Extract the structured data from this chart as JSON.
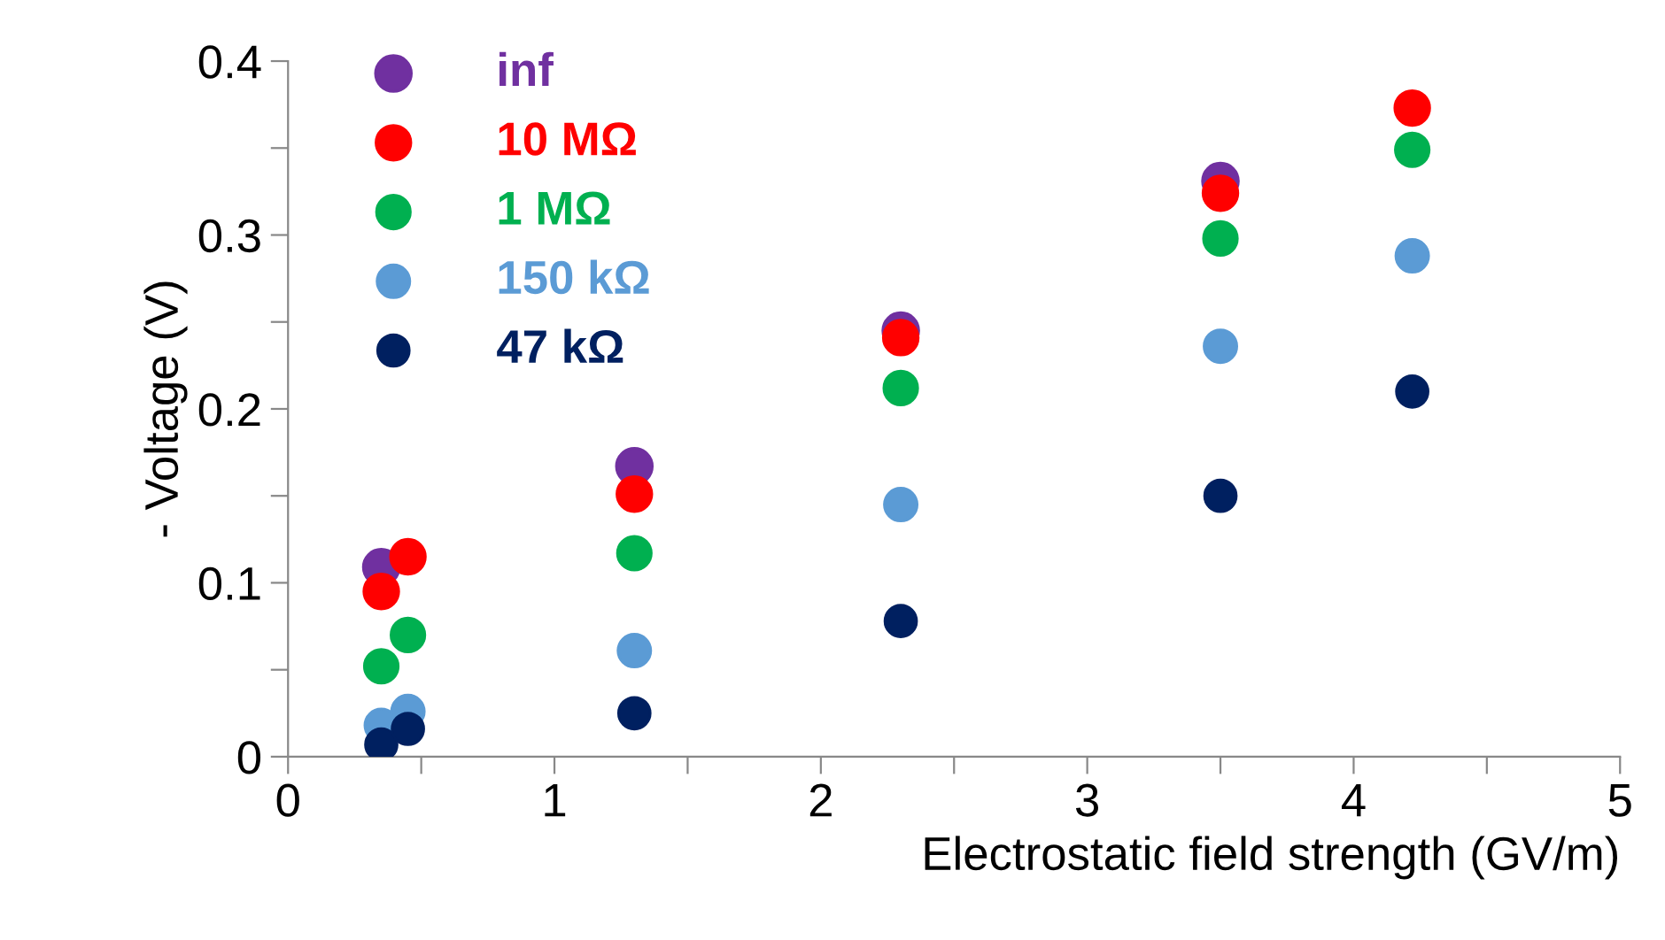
{
  "chart_data": {
    "type": "scatter",
    "xlabel": "Electrostatic field strength (GV/m)",
    "ylabel": "- Voltage (V)",
    "x": [
      0.35,
      0.45,
      1.3,
      2.3,
      3.5,
      4.22
    ],
    "series": [
      {
        "name": "inf",
        "color": "#7030a0",
        "values": [
          0.109,
          null,
          0.167,
          0.245,
          0.331,
          null
        ]
      },
      {
        "name": "10 MΩ",
        "color": "#ff0000",
        "values": [
          0.095,
          0.115,
          0.151,
          0.241,
          0.324,
          0.373
        ]
      },
      {
        "name": "1 MΩ",
        "color": "#00b050",
        "values": [
          0.052,
          0.07,
          0.117,
          0.212,
          0.298,
          0.349
        ]
      },
      {
        "name": "150 kΩ",
        "color": "#5b9bd5",
        "values": [
          0.018,
          0.026,
          0.061,
          0.145,
          0.236,
          0.288
        ]
      },
      {
        "name": "47 kΩ",
        "color": "#002060",
        "values": [
          0.007,
          0.016,
          0.025,
          0.078,
          0.15,
          0.21
        ]
      }
    ],
    "xlim": [
      0,
      5
    ],
    "xticks": [
      0,
      {
        "value": 0.5,
        "label": null
      },
      1,
      {
        "value": 1.5,
        "label": null
      },
      2,
      {
        "value": 2.5,
        "label": null
      },
      3,
      {
        "value": 3.5,
        "label": null
      },
      4,
      {
        "value": 4.5,
        "label": null
      },
      5
    ],
    "ylim": [
      0,
      0.4
    ],
    "yticks": [
      0,
      {
        "value": 0.05,
        "label": null
      },
      0.1,
      {
        "value": 0.15,
        "label": null
      },
      0.2,
      {
        "value": 0.25,
        "label": null
      },
      0.3,
      {
        "value": 0.35,
        "label": null
      },
      0.4
    ],
    "marker": "circle",
    "grid": false,
    "legend": "top left"
  }
}
